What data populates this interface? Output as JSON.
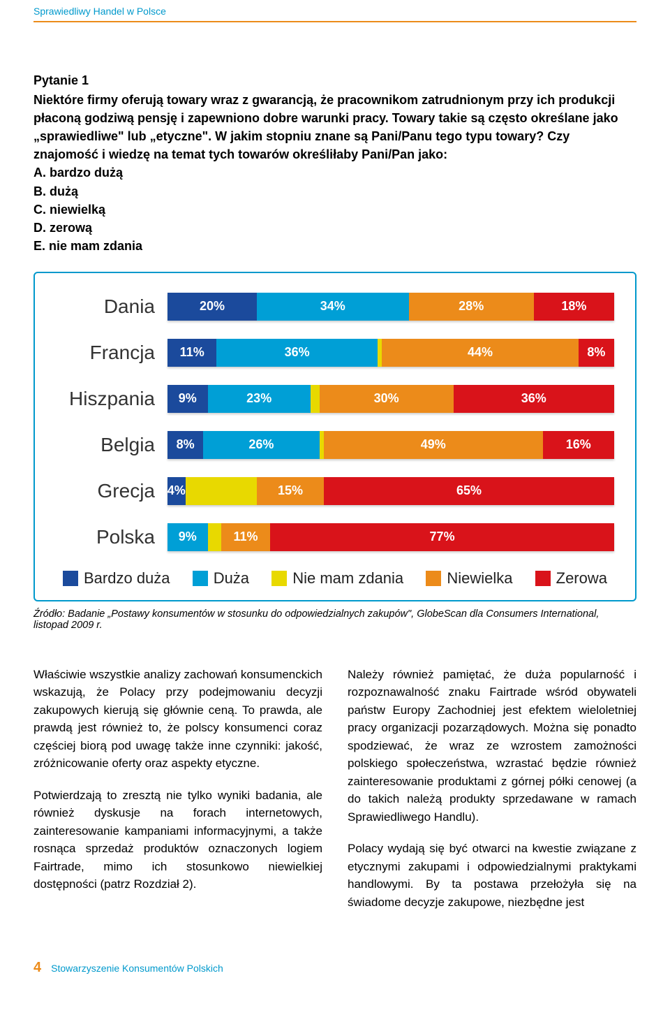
{
  "header": {
    "running_head": "Sprawiedliwy Handel w Polsce"
  },
  "question": {
    "title": "Pytanie 1",
    "body": "Niektóre firmy oferują towary wraz z gwarancją, że pracownikom zatrudnionym przy ich produkcji płaconą godziwą pensję i zapewniono dobre warunki pracy. Towary takie są często określane jako „sprawiedliwe\" lub „etyczne\". W jakim stopniu znane są Pani/Panu tego typu towary? Czy znajomość i wiedzę na temat tych towarów określiłaby Pani/Pan jako:",
    "opts": [
      "A.  bardzo dużą",
      "B.  dużą",
      "C.  niewielką",
      "D.  zerową",
      "E.  nie mam zdania"
    ]
  },
  "chart": {
    "type": "stacked-bar-horizontal",
    "colors": {
      "bardzo_duza": "#1b4a9c",
      "duza": "#009fd6",
      "nie_mam_zdania": "#e8d900",
      "niewielka": "#ec8b1a",
      "zerowa": "#d9131a"
    },
    "rows": [
      {
        "label": "Dania",
        "segs": [
          {
            "k": "bardzo_duza",
            "v": 20,
            "t": "20%"
          },
          {
            "k": "duza",
            "v": 34,
            "t": "34%"
          },
          {
            "k": "nie_mam_zdania",
            "v": 0,
            "t": ""
          },
          {
            "k": "niewielka",
            "v": 28,
            "t": "28%"
          },
          {
            "k": "zerowa",
            "v": 18,
            "t": "18%"
          }
        ]
      },
      {
        "label": "Francja",
        "segs": [
          {
            "k": "bardzo_duza",
            "v": 11,
            "t": "11%"
          },
          {
            "k": "duza",
            "v": 36,
            "t": "36%"
          },
          {
            "k": "nie_mam_zdania",
            "v": 1,
            "t": ""
          },
          {
            "k": "niewielka",
            "v": 44,
            "t": "44%"
          },
          {
            "k": "zerowa",
            "v": 8,
            "t": "8%"
          }
        ]
      },
      {
        "label": "Hiszpania",
        "segs": [
          {
            "k": "bardzo_duza",
            "v": 9,
            "t": "9%"
          },
          {
            "k": "duza",
            "v": 23,
            "t": "23%"
          },
          {
            "k": "nie_mam_zdania",
            "v": 2,
            "t": ""
          },
          {
            "k": "niewielka",
            "v": 30,
            "t": "30%"
          },
          {
            "k": "zerowa",
            "v": 36,
            "t": "36%"
          }
        ]
      },
      {
        "label": "Belgia",
        "segs": [
          {
            "k": "bardzo_duza",
            "v": 8,
            "t": "8%"
          },
          {
            "k": "duza",
            "v": 26,
            "t": "26%"
          },
          {
            "k": "nie_mam_zdania",
            "v": 1,
            "t": ""
          },
          {
            "k": "niewielka",
            "v": 49,
            "t": "49%"
          },
          {
            "k": "zerowa",
            "v": 16,
            "t": "16%"
          }
        ]
      },
      {
        "label": "Grecja",
        "segs": [
          {
            "k": "bardzo_duza",
            "v": 4,
            "t": "4%"
          },
          {
            "k": "duza",
            "v": 0,
            "t": ""
          },
          {
            "k": "nie_mam_zdania",
            "v": 16,
            "t": ""
          },
          {
            "k": "niewielka",
            "v": 15,
            "t": "15%"
          },
          {
            "k": "zerowa",
            "v": 65,
            "t": "65%"
          }
        ]
      },
      {
        "label": "Polska",
        "segs": [
          {
            "k": "bardzo_duza",
            "v": 0,
            "t": ""
          },
          {
            "k": "duza",
            "v": 9,
            "t": "9%"
          },
          {
            "k": "nie_mam_zdania",
            "v": 3,
            "t": ""
          },
          {
            "k": "niewielka",
            "v": 11,
            "t": "11%"
          },
          {
            "k": "zerowa",
            "v": 77,
            "t": "77%"
          }
        ]
      }
    ],
    "legend": [
      {
        "k": "bardzo_duza",
        "label": "Bardzo duża"
      },
      {
        "k": "duza",
        "label": "Duża"
      },
      {
        "k": "nie_mam_zdania",
        "label": "Nie mam zdania"
      },
      {
        "k": "niewielka",
        "label": "Niewielka"
      },
      {
        "k": "zerowa",
        "label": "Zerowa"
      }
    ]
  },
  "source": "Źródło: Badanie „Postawy konsumentów w stosunku do odpowiedzialnych zakupów\", GlobeScan dla Consumers International, listopad 2009 r.",
  "body": {
    "left": [
      "Właściwie wszystkie analizy zachowań konsumenckich wskazują, że Polacy przy podejmowaniu decyzji zakupowych kierują się głównie ceną. To prawda, ale prawdą jest również to, że polscy konsumenci coraz częściej biorą pod uwagę także inne czynniki: jakość, zróżnicowanie oferty oraz aspekty etyczne.",
      "Potwierdzają to zresztą nie tylko wyniki badania, ale również dyskusje na forach internetowych, zainteresowanie kampaniami informacyjnymi, a także rosnąca sprzedaż produktów oznaczonych logiem Fairtrade, mimo ich stosunkowo niewielkiej dostępności (patrz Rozdział 2)."
    ],
    "right": [
      "Należy również pamiętać, że duża popularność i rozpoznawalność znaku Fairtrade wśród obywateli państw Europy Zachodniej jest efektem wieloletniej pracy organizacji pozarządowych. Można się ponadto spodziewać, że wraz ze wzrostem zamożności polskiego społeczeństwa, wzrastać będzie również zainteresowanie produktami z górnej półki cenowej (a do takich należą produkty sprzedawane w ramach Sprawiedliwego Handlu).",
      "Polacy wydają się być otwarci na kwestie związane z etycznymi zakupami i odpowiedzialnymi praktykami handlowymi. By ta postawa przełożyła się na świadome decyzje zakupowe, niezbędne jest"
    ]
  },
  "footer": {
    "page": "4",
    "org": "Stowarzyszenie Konsumentów Polskich"
  }
}
